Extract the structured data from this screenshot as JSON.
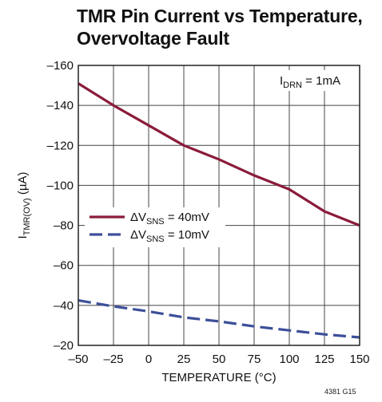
{
  "chart_data": {
    "type": "line",
    "title_lines": [
      "TMR Pin Current vs Temperature,",
      "Overvoltage Fault"
    ],
    "xlabel": "TEMPERATURE (°C)",
    "ylabel": {
      "main": "I",
      "sub": "TMR(OV)",
      "rest": " (µA)"
    },
    "xlim": [
      -50,
      150
    ],
    "ylim": [
      -20,
      -160
    ],
    "y_axis_inverted": true,
    "x_ticks": [
      -50,
      -25,
      0,
      25,
      50,
      75,
      100,
      125,
      150
    ],
    "x_tick_labels": [
      "–50",
      "–25",
      "0",
      "25",
      "50",
      "75",
      "100",
      "125",
      "150"
    ],
    "y_ticks": [
      -160,
      -140,
      -120,
      -100,
      -80,
      -60,
      -40,
      -20
    ],
    "y_tick_labels": [
      "–160",
      "–140",
      "–120",
      "–100",
      "–80",
      "–60",
      "–40",
      "–20"
    ],
    "grid": true,
    "legend_position": "middle-left",
    "annotation": {
      "main": "I",
      "sub": "DRN",
      "rest": " = 1mA"
    },
    "series": [
      {
        "name": "ΔVSNS = 40mV",
        "legend": {
          "pre": "ΔV",
          "sub": "SNS",
          "post": " = 40mV"
        },
        "color": "#8b1c3a",
        "dash": "solid",
        "x": [
          -50,
          -25,
          0,
          25,
          50,
          75,
          100,
          125,
          150
        ],
        "y": [
          -151,
          -140,
          -130,
          -120,
          -113,
          -105,
          -98,
          -87,
          -80
        ]
      },
      {
        "name": "ΔVSNS = 10mV",
        "legend": {
          "pre": "ΔV",
          "sub": "SNS",
          "post": " = 10mV"
        },
        "color": "#3d4f9a",
        "dash": "dashed",
        "x": [
          -50,
          -25,
          0,
          25,
          50,
          75,
          100,
          125,
          150
        ],
        "y": [
          -42.5,
          -39.5,
          -37,
          -34,
          -32,
          -29.5,
          -27.5,
          -25.5,
          -24
        ]
      }
    ]
  },
  "figure_code": "4381 G15"
}
